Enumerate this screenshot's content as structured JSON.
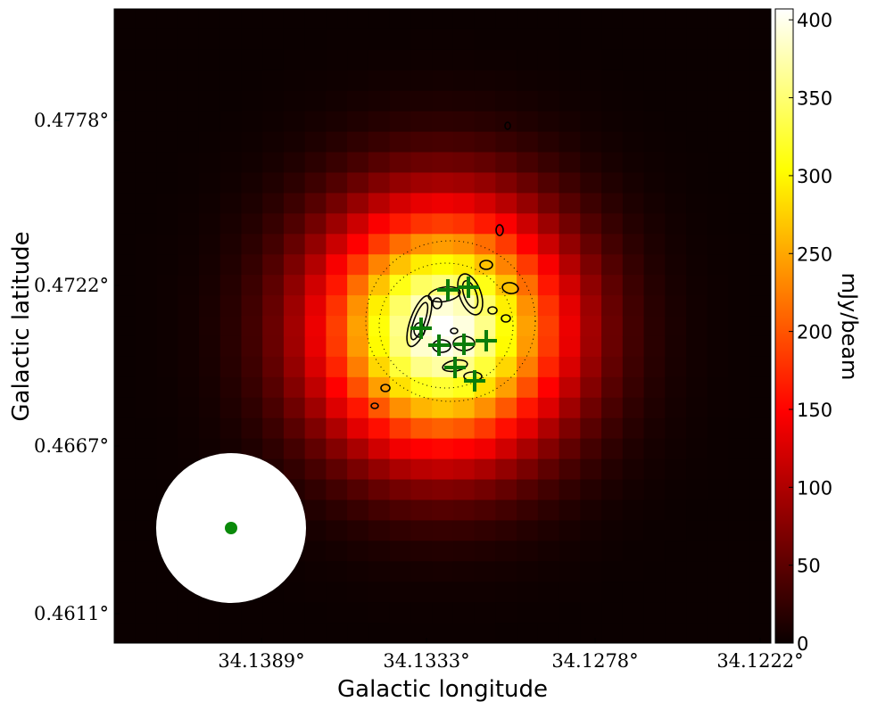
{
  "chart_data": {
    "type": "heatmap",
    "title": "",
    "xlabel": "Galactic longitude",
    "ylabel": "Galactic latitude",
    "x_ticks": [
      "34.1389°",
      "34.1333°",
      "34.1278°",
      "34.1222°"
    ],
    "y_ticks": [
      "0.4778°",
      "0.4722°",
      "0.4667°",
      "0.4611°"
    ],
    "colorbar": {
      "label": "mJy/beam",
      "ticks": [
        "0",
        "50",
        "100",
        "150",
        "200",
        "250",
        "300",
        "350",
        "400"
      ],
      "range": [
        0,
        407
      ],
      "colormap": "hot"
    },
    "source": {
      "peak_mjy_per_beam": 407,
      "colormap": "hot"
    },
    "markers": {
      "type": "plus",
      "color": "#0a7d0a",
      "count": 8
    },
    "beam": {
      "shape": "circle",
      "fill": "#ffffff",
      "center_marker_color": "#0a8a0a"
    },
    "contours": {
      "color": "#000000"
    }
  }
}
